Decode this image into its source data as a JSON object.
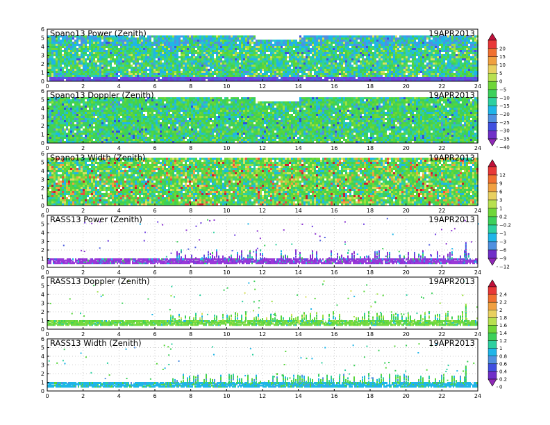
{
  "figure": {
    "x_axis": {
      "range": [
        0,
        24
      ],
      "ticks": [
        "0",
        "2",
        "4",
        "6",
        "8",
        "10",
        "12",
        "14",
        "16",
        "18",
        "20",
        "22",
        "24"
      ]
    },
    "y_axis": {
      "range": [
        0,
        6
      ],
      "ticks": [
        "0",
        "1",
        "2",
        "3",
        "4",
        "5",
        "6"
      ]
    }
  },
  "panels": [
    {
      "title": "Spano13  Power  (Zenith)",
      "date": "19APR2013",
      "kind": "dense",
      "scale": 0,
      "palette": [
        "#1fb5e8",
        "#2dd0a0",
        "#3cd05a",
        "#56d63a",
        "#6fd638",
        "#9ce040",
        "#d8e060",
        "#3fd86c",
        "#2cc8c8",
        "#5090e0",
        "#4050e0"
      ],
      "weights": [
        16,
        12,
        12,
        8,
        8,
        4,
        4,
        8,
        6,
        4,
        2
      ]
    },
    {
      "title": "Spano13  Doppler  (Zenith)",
      "date": "19APR2013",
      "kind": "dense",
      "scale": 0,
      "palette": [
        "#3cd05a",
        "#56d63a",
        "#2dd0a0",
        "#1fb5e8",
        "#6fd638",
        "#9ce040",
        "#5090e0",
        "#3050d8"
      ],
      "weights": [
        20,
        14,
        12,
        8,
        6,
        3,
        3,
        2
      ]
    },
    {
      "title": "Spano13  Width  (Zenith)",
      "date": "19APR2013",
      "kind": "dense",
      "scale": 1,
      "palette": [
        "#3cd05a",
        "#56d63a",
        "#2dd0a0",
        "#6fd638",
        "#9ce040",
        "#d8e060",
        "#f0a040",
        "#e85040",
        "#c82030",
        "#1fb5e8"
      ],
      "weights": [
        16,
        12,
        10,
        10,
        8,
        6,
        4,
        3,
        2,
        8
      ]
    },
    {
      "title": "RASS13  Power  (Zenith)",
      "date": "19APR2013",
      "kind": "sparse",
      "scale": 1,
      "palette": [
        "#8a30d0",
        "#7040e0",
        "#5060e0",
        "#1fb5e8",
        "#3cd05a",
        "#2dd0a0"
      ],
      "weights": [
        10,
        6,
        4,
        4,
        2,
        2
      ],
      "base_color": "#9a38d8"
    },
    {
      "title": "RASS13  Doppler  (Zenith)",
      "date": "19APR2013",
      "kind": "sparse",
      "scale": 2,
      "palette": [
        "#56d63a",
        "#3cd05a",
        "#9ce040",
        "#2dd0a0",
        "#1fb5e8",
        "#d8e060"
      ],
      "weights": [
        10,
        8,
        6,
        6,
        4,
        2
      ],
      "base_color": "#70d840"
    },
    {
      "title": "RASS13  Width  (Zenith)",
      "date": "19APR2013",
      "kind": "sparse",
      "scale": 2,
      "palette": [
        "#56d63a",
        "#3cd05a",
        "#2dd0a0",
        "#1fb5e8",
        "#5090e0"
      ],
      "weights": [
        10,
        8,
        6,
        6,
        3
      ],
      "base_color": "#1fb5e8"
    }
  ],
  "colorbars": [
    {
      "labels": [
        "20",
        "15",
        "10",
        "5",
        "0",
        "−5",
        "−10",
        "−15",
        "−20",
        "−25",
        "−30",
        "−35",
        "−40"
      ],
      "colors": [
        "#c0103a",
        "#e83838",
        "#f07030",
        "#f0a040",
        "#e8d060",
        "#b8e050",
        "#6fd638",
        "#3cd05a",
        "#2dd0a0",
        "#1fb5e8",
        "#5090e0",
        "#4050e0",
        "#7030c8",
        "#9028b8"
      ]
    },
    {
      "labels": [
        "12",
        "9",
        "6",
        "3",
        "1",
        "0.2",
        "−0.2",
        "−1",
        "−3",
        "−6",
        "−9",
        "−12"
      ],
      "colors": [
        "#c0103a",
        "#e83838",
        "#f07030",
        "#f0a040",
        "#e8d060",
        "#b8e050",
        "#6fd638",
        "#3cd05a",
        "#2dd0a0",
        "#1fb5e8",
        "#5090e0",
        "#7030c8",
        "#9028b8"
      ]
    },
    {
      "labels": [
        "2.4",
        "2.2",
        "2",
        "1.8",
        "1.6",
        "1.4",
        "1.2",
        "1",
        "0.8",
        "0.6",
        "0.4",
        "0.2",
        "0"
      ],
      "colors": [
        "#c0103a",
        "#e83838",
        "#f07030",
        "#f0a040",
        "#e8d060",
        "#b8e050",
        "#6fd638",
        "#3cd05a",
        "#2dd0a0",
        "#1fb5e8",
        "#5090e0",
        "#4050e0",
        "#7030c8",
        "#9028b8"
      ]
    }
  ],
  "chart_data": [
    {
      "type": "heatmap",
      "title": "Spano13  Power  (Zenith)",
      "annotation": "19APR2013",
      "xlim": [
        0,
        24
      ],
      "ylim": [
        0,
        6
      ],
      "colorbar": [
        -40,
        -35,
        -30,
        -25,
        -20,
        -15,
        -10,
        -5,
        0,
        5,
        10,
        15,
        20
      ]
    },
    {
      "type": "heatmap",
      "title": "Spano13  Doppler  (Zenith)",
      "annotation": "19APR2013",
      "xlim": [
        0,
        24
      ],
      "ylim": [
        0,
        6
      ],
      "colorbar": [
        -40,
        -35,
        -30,
        -25,
        -20,
        -15,
        -10,
        -5,
        0,
        5,
        10,
        15,
        20
      ]
    },
    {
      "type": "heatmap",
      "title": "Spano13  Width  (Zenith)",
      "annotation": "19APR2013",
      "xlim": [
        0,
        24
      ],
      "ylim": [
        0,
        6
      ],
      "colorbar": [
        -12,
        -9,
        -6,
        -3,
        -1,
        -0.2,
        0.2,
        1,
        3,
        6,
        9,
        12
      ]
    },
    {
      "type": "heatmap",
      "title": "RASS13  Power  (Zenith)",
      "annotation": "19APR2013",
      "xlim": [
        0,
        24
      ],
      "ylim": [
        0,
        6
      ],
      "colorbar": [
        -12,
        -9,
        -6,
        -3,
        -1,
        -0.2,
        0.2,
        1,
        3,
        6,
        9,
        12
      ]
    },
    {
      "type": "heatmap",
      "title": "RASS13  Doppler  (Zenith)",
      "annotation": "19APR2013",
      "xlim": [
        0,
        24
      ],
      "ylim": [
        0,
        6
      ],
      "colorbar": [
        0,
        0.2,
        0.4,
        0.6,
        0.8,
        1,
        1.2,
        1.4,
        1.6,
        1.8,
        2,
        2.2,
        2.4
      ]
    },
    {
      "type": "heatmap",
      "title": "RASS13  Width  (Zenith)",
      "annotation": "19APR2013",
      "xlim": [
        0,
        24
      ],
      "ylim": [
        0,
        6
      ],
      "colorbar": [
        0,
        0.2,
        0.4,
        0.6,
        0.8,
        1,
        1.2,
        1.4,
        1.6,
        1.8,
        2,
        2.2,
        2.4
      ]
    }
  ]
}
